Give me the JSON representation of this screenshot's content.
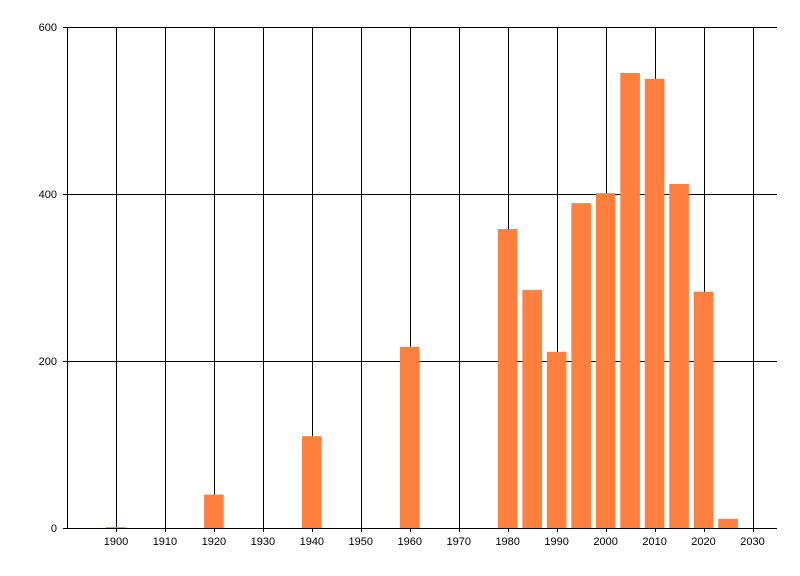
{
  "chart_data": {
    "type": "bar",
    "x": [
      1900,
      1920,
      1940,
      1960,
      1980,
      1985,
      1990,
      1995,
      2000,
      2005,
      2010,
      2015,
      2020,
      2025
    ],
    "values": [
      1,
      40,
      110,
      217,
      358,
      285,
      211,
      389,
      401,
      545,
      538,
      412,
      283,
      11
    ],
    "xlim": [
      1890,
      2035
    ],
    "ylim": [
      0,
      600
    ],
    "x_ticks": [
      1900,
      1910,
      1920,
      1930,
      1940,
      1950,
      1960,
      1970,
      1980,
      1990,
      2000,
      2010,
      2020,
      2030
    ],
    "x_tick_labels": [
      "1900",
      "1910",
      "1920",
      "1930",
      "1940",
      "1950",
      "1960",
      "1970",
      "1980",
      "1990",
      "2000",
      "2010",
      "2020",
      "2030"
    ],
    "y_ticks": [
      0,
      200,
      400,
      600
    ],
    "y_tick_labels": [
      "0",
      "200",
      "400",
      "600"
    ],
    "bar_width_years": 4,
    "grid": true,
    "title": "",
    "xlabel": "",
    "ylabel": "",
    "colors": {
      "bar": "#ff7f3f",
      "grid": "#000000",
      "axis": "#000000"
    }
  }
}
